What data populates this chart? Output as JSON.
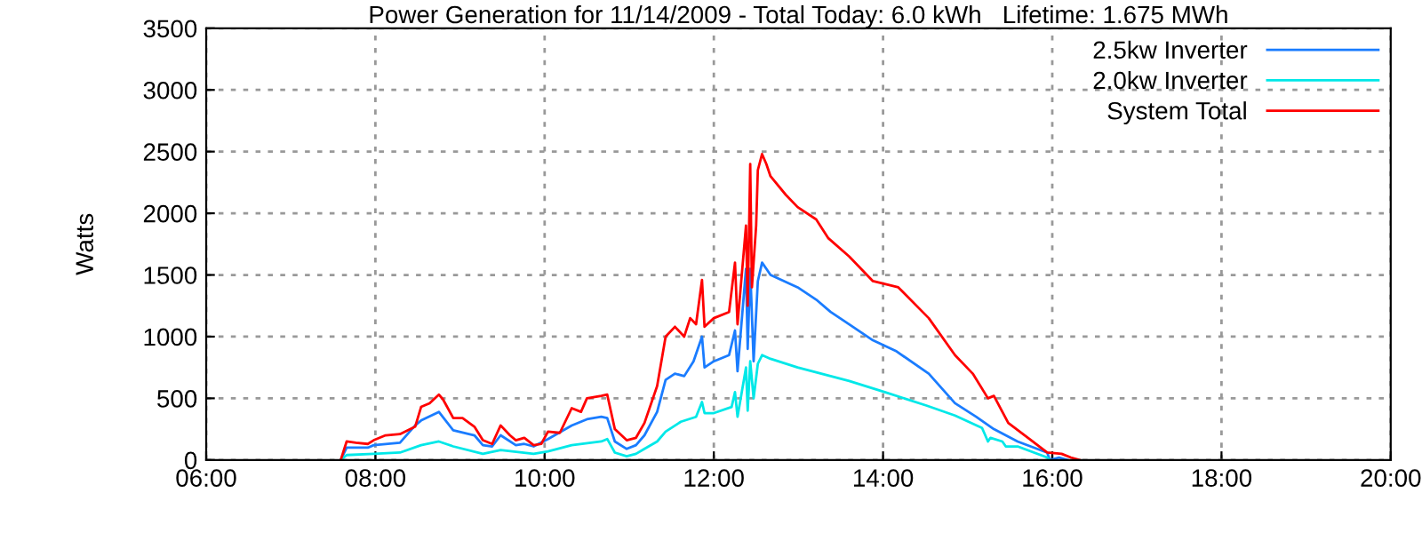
{
  "chart_data": {
    "type": "line",
    "title": "Power Generation for 11/14/2009 - Total Today: 6.0 kWh   Lifetime: 1.675 MWh",
    "ylabel": "Watts",
    "xlim": [
      6,
      20
    ],
    "xticks": [
      {
        "value": 6,
        "label": "06:00"
      },
      {
        "value": 8,
        "label": "08:00"
      },
      {
        "value": 10,
        "label": "10:00"
      },
      {
        "value": 12,
        "label": "12:00"
      },
      {
        "value": 14,
        "label": "14:00"
      },
      {
        "value": 16,
        "label": "16:00"
      },
      {
        "value": 18,
        "label": "18:00"
      },
      {
        "value": 20,
        "label": "20:00"
      }
    ],
    "ylim": [
      0,
      3500
    ],
    "yticks": [
      0,
      500,
      1000,
      1500,
      2000,
      2500,
      3000,
      3500
    ],
    "grid": true,
    "legend": "top right",
    "line_style": "solid",
    "marker": "none",
    "series": [
      {
        "name": "2.5kw Inverter",
        "color": "#1a7cff",
        "x": [
          7.59,
          7.66,
          7.91,
          7.98,
          8.29,
          8.47,
          8.54,
          8.75,
          8.92,
          9.17,
          9.27,
          9.38,
          9.48,
          9.66,
          9.76,
          9.87,
          10.04,
          10.32,
          10.5,
          10.67,
          10.74,
          10.83,
          10.97,
          11.08,
          11.18,
          11.33,
          11.43,
          11.54,
          11.65,
          11.76,
          11.86,
          11.89,
          12.0,
          12.18,
          12.25,
          12.28,
          12.38,
          12.4,
          12.43,
          12.47,
          12.52,
          12.57,
          12.62,
          12.67,
          12.99,
          13.21,
          13.38,
          13.6,
          13.88,
          14.16,
          14.54,
          14.85,
          15.1,
          15.31,
          15.59,
          15.94,
          15.97,
          16.08,
          16.18
        ],
        "values": [
          0,
          100,
          100,
          120,
          140,
          280,
          320,
          390,
          240,
          200,
          120,
          110,
          200,
          120,
          130,
          110,
          170,
          280,
          330,
          350,
          340,
          150,
          90,
          120,
          200,
          390,
          650,
          700,
          680,
          800,
          1000,
          750,
          800,
          850,
          1050,
          720,
          1550,
          900,
          1550,
          800,
          1450,
          1600,
          1550,
          1500,
          1400,
          1300,
          1200,
          1100,
          970,
          880,
          700,
          460,
          350,
          250,
          150,
          60,
          0,
          20,
          0
        ]
      },
      {
        "name": "2.0kw Inverter",
        "color": "#00e8e8",
        "x": [
          7.59,
          7.66,
          7.98,
          8.29,
          8.54,
          8.75,
          8.92,
          9.27,
          9.48,
          9.87,
          10.04,
          10.32,
          10.67,
          10.74,
          10.83,
          10.97,
          11.08,
          11.18,
          11.33,
          11.43,
          11.61,
          11.79,
          11.86,
          11.89,
          12.0,
          12.21,
          12.25,
          12.28,
          12.38,
          12.4,
          12.43,
          12.47,
          12.52,
          12.57,
          12.67,
          12.99,
          13.38,
          13.6,
          14.02,
          14.52,
          14.85,
          15.17,
          15.24,
          15.27,
          15.41,
          15.45,
          15.59,
          15.94,
          15.97
        ],
        "values": [
          0,
          40,
          50,
          60,
          120,
          150,
          110,
          50,
          80,
          50,
          70,
          120,
          150,
          170,
          60,
          30,
          50,
          90,
          150,
          230,
          310,
          350,
          470,
          380,
          380,
          430,
          550,
          350,
          750,
          400,
          800,
          500,
          780,
          850,
          820,
          750,
          680,
          640,
          550,
          440,
          360,
          260,
          150,
          180,
          150,
          110,
          110,
          20,
          0
        ]
      },
      {
        "name": "System Total",
        "color": "#ff0000",
        "x": [
          7.59,
          7.66,
          7.77,
          7.91,
          7.98,
          8.12,
          8.29,
          8.47,
          8.54,
          8.64,
          8.75,
          8.8,
          8.92,
          9.03,
          9.17,
          9.27,
          9.38,
          9.48,
          9.59,
          9.66,
          9.76,
          9.87,
          9.96,
          10.04,
          10.18,
          10.32,
          10.43,
          10.5,
          10.67,
          10.74,
          10.83,
          10.97,
          11.08,
          11.18,
          11.33,
          11.43,
          11.54,
          11.65,
          11.72,
          11.79,
          11.86,
          11.89,
          12.0,
          12.18,
          12.25,
          12.28,
          12.38,
          12.4,
          12.43,
          12.45,
          12.5,
          12.52,
          12.57,
          12.62,
          12.67,
          12.85,
          12.99,
          13.21,
          13.35,
          13.6,
          13.88,
          14.18,
          14.54,
          14.85,
          15.06,
          15.24,
          15.31,
          15.48,
          15.73,
          15.94,
          16.11,
          16.22,
          16.32
        ],
        "values": [
          0,
          150,
          140,
          130,
          160,
          200,
          210,
          270,
          430,
          460,
          530,
          490,
          340,
          340,
          270,
          160,
          130,
          280,
          200,
          160,
          180,
          120,
          130,
          230,
          220,
          420,
          390,
          500,
          520,
          530,
          250,
          160,
          180,
          300,
          600,
          1000,
          1080,
          1000,
          1150,
          1100,
          1460,
          1080,
          1150,
          1200,
          1600,
          1100,
          1900,
          1250,
          2400,
          1400,
          1900,
          2350,
          2480,
          2400,
          2300,
          2150,
          2050,
          1950,
          1800,
          1650,
          1450,
          1400,
          1150,
          850,
          700,
          500,
          520,
          300,
          170,
          60,
          50,
          20,
          0
        ]
      }
    ]
  }
}
